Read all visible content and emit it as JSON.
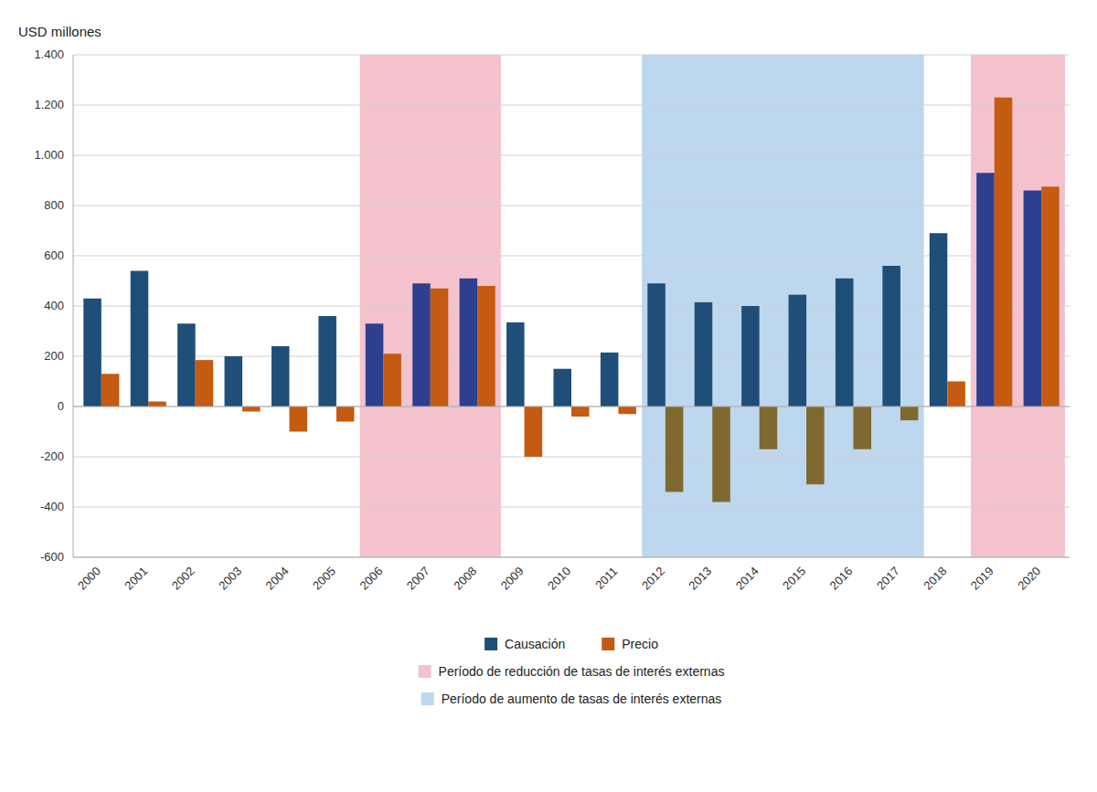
{
  "chart_data": {
    "type": "bar",
    "y_label": "USD millones",
    "categories": [
      "2000",
      "2001",
      "2002",
      "2003",
      "2004",
      "2005",
      "2006",
      "2007",
      "2008",
      "2009",
      "2010",
      "2011",
      "2012",
      "2013",
      "2014",
      "2015",
      "2016",
      "2017",
      "2018",
      "2019",
      "2020"
    ],
    "series": [
      {
        "name": "Causación",
        "color": "#1f4e79",
        "colors": [
          "#1f4e79",
          "#1f4e79",
          "#1f4e79",
          "#1f4e79",
          "#1f4e79",
          "#1f4e79",
          "#2e3f8f",
          "#2e3f8f",
          "#2e3f8f",
          "#1f4e79",
          "#1f4e79",
          "#1f4e79",
          "#1f4e79",
          "#1f4e79",
          "#1f4e79",
          "#1f4e79",
          "#1f4e79",
          "#1f4e79",
          "#1f4e79",
          "#2e3f8f",
          "#2e3f8f"
        ],
        "values": [
          430,
          540,
          330,
          200,
          240,
          360,
          330,
          490,
          510,
          335,
          150,
          215,
          490,
          415,
          400,
          445,
          510,
          560,
          690,
          930,
          860
        ]
      },
      {
        "name": "Precio",
        "color": "#c55a11",
        "colors": [
          "#c55a11",
          "#c55a11",
          "#c55a11",
          "#c55a11",
          "#c55a11",
          "#c55a11",
          "#c55a11",
          "#c55a11",
          "#c55a11",
          "#c55a11",
          "#c55a11",
          "#c55a11",
          "#7f6930",
          "#7f6930",
          "#7f6930",
          "#7f6930",
          "#7f6930",
          "#7f6930",
          "#c55a11",
          "#c55a11",
          "#c55a11"
        ],
        "values": [
          130,
          20,
          185,
          -20,
          -100,
          -60,
          210,
          470,
          480,
          -200,
          -40,
          -30,
          -340,
          -380,
          -170,
          -310,
          -170,
          -55,
          100,
          1230,
          875
        ]
      }
    ],
    "regions": [
      {
        "name": "Período de reducción de tasas de interés externas",
        "color": "#f4c2cd",
        "spans": [
          [
            "2006",
            "2008"
          ],
          [
            "2019",
            "2020"
          ]
        ]
      },
      {
        "name": "Período de aumento de tasas de interés externas",
        "color": "#bdd7ee",
        "spans": [
          [
            "2012",
            "2017"
          ]
        ]
      }
    ],
    "ylim": [
      -600,
      1400
    ],
    "yticks": [
      -600,
      -400,
      -200,
      0,
      200,
      400,
      600,
      800,
      {
        "value": 1000,
        "label": "1.000"
      },
      {
        "value": 1200,
        "label": "1.200"
      },
      {
        "value": 1400,
        "label": "1.400"
      }
    ],
    "grid": true,
    "legend": "bottom"
  }
}
